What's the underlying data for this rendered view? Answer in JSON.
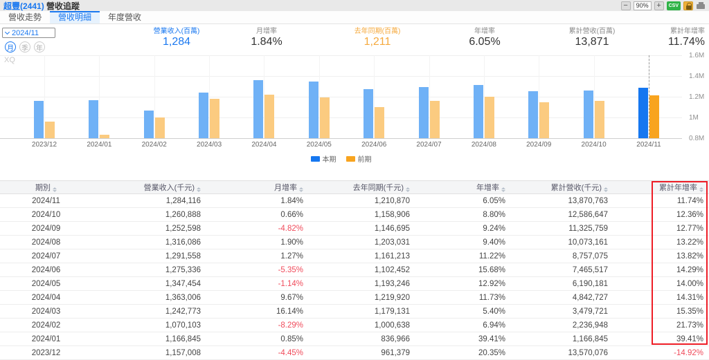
{
  "titlebar": {
    "stock": "超豐(2441)",
    "title": "營收追蹤",
    "zoom_out": "−",
    "zoom_level": "90%",
    "zoom_in": "+",
    "csv_label": "CSV"
  },
  "tabs": [
    {
      "label": "營收走勢",
      "active": false
    },
    {
      "label": "營收明細",
      "active": true
    },
    {
      "label": "年度營收",
      "active": false
    }
  ],
  "controls": {
    "period_select": "2024/11",
    "period_buttons": [
      {
        "label": "月",
        "active": true
      },
      {
        "label": "季",
        "active": false
      },
      {
        "label": "年",
        "active": false
      }
    ]
  },
  "stats": [
    {
      "label": "營業收入(百萬)",
      "value": "1,284",
      "accent": "blue"
    },
    {
      "label": "月增率",
      "value": "1.84%",
      "accent": "plain"
    },
    {
      "label": "去年同期(百萬)",
      "value": "1,211",
      "accent": "orange"
    },
    {
      "label": "年增率",
      "value": "6.05%",
      "accent": "plain"
    },
    {
      "label": "累計營收(百萬)",
      "value": "13,871",
      "accent": "plain"
    },
    {
      "label": "累計年增率",
      "value": "11.74%",
      "accent": "plain"
    }
  ],
  "chart_data": {
    "type": "bar",
    "title": "",
    "watermark": "XQ",
    "categories": [
      "2023/12",
      "2024/01",
      "2024/02",
      "2024/03",
      "2024/04",
      "2024/05",
      "2024/06",
      "2024/07",
      "2024/08",
      "2024/09",
      "2024/10",
      "2024/11"
    ],
    "series": [
      {
        "name": "本期",
        "values": [
          1157008,
          1166845,
          1070103,
          1242773,
          1363006,
          1347454,
          1275336,
          1291558,
          1316086,
          1252598,
          1260888,
          1284116
        ]
      },
      {
        "name": "前期",
        "values": [
          961379,
          836966,
          1000638,
          1179131,
          1219920,
          1193246,
          1102452,
          1161213,
          1203031,
          1146695,
          1158906,
          1210870
        ]
      }
    ],
    "ylim": [
      800000,
      1600000
    ],
    "yticks": [
      "1.6M",
      "1.4M",
      "1.2M",
      "1M",
      "0.8M"
    ],
    "unit": "千元",
    "highlight_index": 11,
    "legend_position": "bottom",
    "grid": true
  },
  "table": {
    "headers": [
      "期別",
      "營業收入(千元)",
      "月增率",
      "去年同期(千元)",
      "年增率",
      "累計營收(千元)",
      "累計年增率"
    ],
    "rows": [
      [
        "2024/11",
        "1,284,116",
        "1.84%",
        "1,210,870",
        "6.05%",
        "13,870,763",
        "11.74%"
      ],
      [
        "2024/10",
        "1,260,888",
        "0.66%",
        "1,158,906",
        "8.80%",
        "12,586,647",
        "12.36%"
      ],
      [
        "2024/09",
        "1,252,598",
        "-4.82%",
        "1,146,695",
        "9.24%",
        "11,325,759",
        "12.77%"
      ],
      [
        "2024/08",
        "1,316,086",
        "1.90%",
        "1,203,031",
        "9.40%",
        "10,073,161",
        "13.22%"
      ],
      [
        "2024/07",
        "1,291,558",
        "1.27%",
        "1,161,213",
        "11.22%",
        "8,757,075",
        "13.82%"
      ],
      [
        "2024/06",
        "1,275,336",
        "-5.35%",
        "1,102,452",
        "15.68%",
        "7,465,517",
        "14.29%"
      ],
      [
        "2024/05",
        "1,347,454",
        "-1.14%",
        "1,193,246",
        "12.92%",
        "6,190,181",
        "14.00%"
      ],
      [
        "2024/04",
        "1,363,006",
        "9.67%",
        "1,219,920",
        "11.73%",
        "4,842,727",
        "14.31%"
      ],
      [
        "2024/03",
        "1,242,773",
        "16.14%",
        "1,179,131",
        "5.40%",
        "3,479,721",
        "15.35%"
      ],
      [
        "2024/02",
        "1,070,103",
        "-8.29%",
        "1,000,638",
        "6.94%",
        "2,236,948",
        "21.73%"
      ],
      [
        "2024/01",
        "1,166,845",
        "0.85%",
        "836,966",
        "39.41%",
        "1,166,845",
        "39.41%"
      ],
      [
        "2023/12",
        "1,157,008",
        "-4.45%",
        "961,379",
        "20.35%",
        "13,570,076",
        "-14.92%"
      ]
    ]
  },
  "colors": {
    "accent_blue": "#1a78f0",
    "accent_orange": "#f5a93d",
    "bar_blue": "#6fb1f6",
    "bar_blue_hl": "#1677f0",
    "bar_orange": "#fbcb80",
    "bar_orange_hl": "#f8a41f",
    "neg_red": "#f04b5b",
    "box_red": "#ee1c25",
    "csv_green": "#2fb347",
    "lock_yellow": "#f0b13a"
  }
}
